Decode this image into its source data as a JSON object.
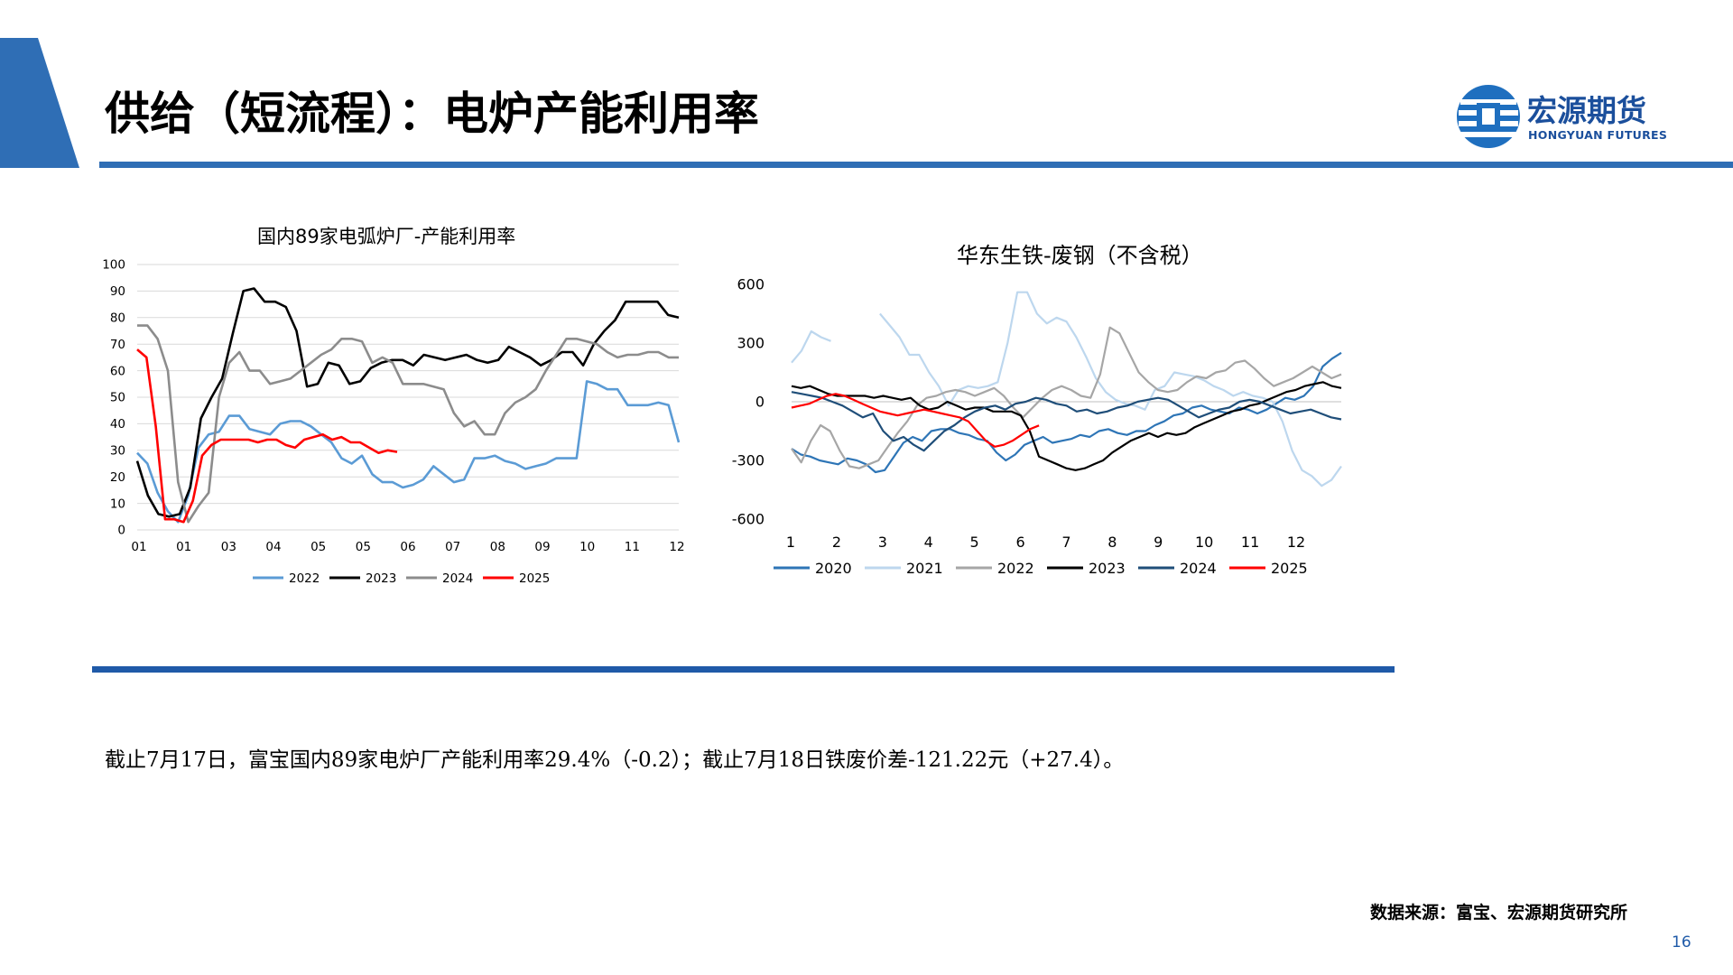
{
  "page": {
    "title": "供给（短流程）：电炉产能利用率",
    "logo_cn": "宏源期货",
    "logo_en": "HONGYUAN FUTURES",
    "summary": "截止7月17日，富宝国内89家电炉厂产能利用率29.4%（-0.2）；截止7月18日铁废价差-121.22元（+27.4）。",
    "source": "数据来源：富宝、宏源期货研究所",
    "page_number": "16",
    "colors": {
      "brand_blue": "#2f6eb5",
      "brand_dark": "#1f5aa8"
    }
  },
  "chart_data": [
    {
      "type": "line",
      "title": "国内89家电弧炉厂-产能利用率",
      "ylim": [
        0,
        100
      ],
      "yticks": [
        "0",
        "10",
        "20",
        "30",
        "40",
        "50",
        "60",
        "70",
        "80",
        "90",
        "100"
      ],
      "xticks": [
        "01",
        "01",
        "03",
        "04",
        "05",
        "05",
        "06",
        "07",
        "08",
        "09",
        "10",
        "11",
        "12"
      ],
      "legend_position": "bottom",
      "series": [
        {
          "name": "2022",
          "color": "#5b9bd5",
          "values": [
            29,
            25,
            14,
            7,
            3,
            13,
            31,
            36,
            37,
            43,
            43,
            38,
            37,
            36,
            40,
            41,
            41,
            39,
            36,
            33,
            27,
            25,
            28,
            21,
            18,
            18,
            16,
            17,
            19,
            24,
            21,
            18,
            19,
            27,
            27,
            28,
            26,
            25,
            23,
            24,
            25,
            27,
            27,
            27,
            56,
            55,
            53,
            53,
            47,
            47,
            47,
            48,
            47,
            33
          ]
        },
        {
          "name": "2023",
          "color": "#000000",
          "values": [
            26,
            13,
            6,
            5,
            6,
            16,
            42,
            50,
            57,
            74,
            90,
            91,
            86,
            86,
            84,
            75,
            54,
            55,
            63,
            62,
            55,
            56,
            61,
            63,
            64,
            64,
            62,
            66,
            65,
            64,
            65,
            66,
            64,
            63,
            64,
            69,
            67,
            65,
            62,
            64,
            67,
            67,
            62,
            70,
            75,
            79,
            86,
            86,
            86,
            86,
            81,
            80
          ]
        },
        {
          "name": "2024",
          "color": "#8c8c8c",
          "values": [
            77,
            77,
            72,
            60,
            18,
            3,
            9,
            14,
            50,
            63,
            67,
            60,
            60,
            55,
            56,
            57,
            60,
            63,
            66,
            68,
            72,
            72,
            71,
            63,
            65,
            63,
            55,
            55,
            55,
            54,
            53,
            44,
            39,
            41,
            36,
            36,
            44,
            48,
            50,
            53,
            60,
            66,
            72,
            72,
            71,
            70,
            67,
            65,
            66,
            66,
            67,
            67,
            65,
            65
          ]
        },
        {
          "name": "2025",
          "color": "#ff0000",
          "values": [
            68,
            65,
            39,
            4,
            4,
            3,
            11,
            28,
            32,
            34,
            34,
            34,
            34,
            33,
            34,
            34,
            32,
            31,
            34,
            35,
            36,
            34,
            35,
            33,
            33,
            31,
            29,
            30,
            29.4
          ]
        }
      ]
    },
    {
      "type": "line",
      "title": "华东生铁-废钢（不含税）",
      "ylim": [
        -600,
        600
      ],
      "yticks": [
        "-600",
        "-300",
        "0",
        "300",
        "600"
      ],
      "xticks": [
        "1",
        "2",
        "3",
        "4",
        "5",
        "6",
        "7",
        "8",
        "9",
        "10",
        "11",
        "12"
      ],
      "legend_position": "bottom",
      "series": [
        {
          "name": "2020",
          "color": "#2e75b6",
          "values": [
            -240,
            -270,
            -280,
            -300,
            -310,
            -320,
            -290,
            -300,
            -320,
            -360,
            -350,
            -280,
            -210,
            -180,
            -200,
            -150,
            -140,
            -140,
            -160,
            -170,
            -190,
            -200,
            -260,
            -300,
            -270,
            -220,
            -200,
            -180,
            -210,
            -200,
            -190,
            -170,
            -180,
            -150,
            -140,
            -160,
            -170,
            -150,
            -150,
            -120,
            -100,
            -70,
            -60,
            -30,
            -20,
            -40,
            -50,
            -60,
            -30,
            -40,
            -60,
            -40,
            -10,
            20,
            10,
            30,
            80,
            180,
            220,
            250
          ]
        },
        {
          "name": "2021",
          "color": "#bdd7ee",
          "values": [
            200,
            260,
            360,
            330,
            310,
            null,
            null,
            null,
            null,
            450,
            390,
            330,
            240,
            240,
            150,
            80,
            -20,
            60,
            80,
            70,
            80,
            100,
            300,
            560,
            560,
            450,
            400,
            430,
            410,
            330,
            230,
            120,
            50,
            10,
            -10,
            -20,
            -40,
            60,
            80,
            150,
            140,
            130,
            110,
            80,
            60,
            30,
            50,
            30,
            20,
            0,
            -100,
            -250,
            -350,
            -380,
            -430,
            -400,
            -330
          ]
        },
        {
          "name": "2022",
          "color": "#a6a6a6",
          "values": [
            -240,
            -310,
            -200,
            -120,
            -150,
            -250,
            -330,
            -340,
            -320,
            -300,
            -230,
            -160,
            -100,
            -20,
            20,
            30,
            50,
            60,
            50,
            30,
            50,
            70,
            30,
            -30,
            -80,
            -30,
            20,
            60,
            80,
            60,
            30,
            20,
            140,
            380,
            350,
            250,
            150,
            100,
            60,
            50,
            60,
            100,
            130,
            120,
            150,
            160,
            200,
            210,
            170,
            120,
            80,
            100,
            120,
            150,
            180,
            150,
            120,
            140
          ]
        },
        {
          "name": "2023",
          "color": "#000000",
          "values": [
            80,
            70,
            80,
            60,
            40,
            30,
            30,
            30,
            30,
            20,
            30,
            20,
            10,
            20,
            -20,
            -40,
            -30,
            0,
            -20,
            -40,
            -30,
            -30,
            -50,
            -50,
            -50,
            -70,
            -150,
            -280,
            -300,
            -320,
            -340,
            -350,
            -340,
            -320,
            -300,
            -260,
            -230,
            -200,
            -180,
            -160,
            -180,
            -160,
            -170,
            -160,
            -130,
            -110,
            -90,
            -70,
            -50,
            -40,
            -20,
            -10,
            10,
            30,
            50,
            60,
            80,
            90,
            100,
            80,
            70
          ]
        },
        {
          "name": "2024",
          "color": "#1f4e79",
          "values": [
            50,
            40,
            30,
            20,
            0,
            -20,
            -50,
            -80,
            -60,
            -150,
            -200,
            -180,
            -220,
            -250,
            -200,
            -150,
            -120,
            -80,
            -50,
            -30,
            -20,
            -40,
            -10,
            0,
            20,
            10,
            -10,
            -20,
            -50,
            -40,
            -60,
            -50,
            -30,
            -20,
            0,
            10,
            20,
            10,
            -20,
            -50,
            -80,
            -60,
            -40,
            -30,
            0,
            10,
            0,
            -20,
            -40,
            -60,
            -50,
            -40,
            -60,
            -80,
            -90
          ]
        },
        {
          "name": "2025",
          "color": "#ff0000",
          "values": [
            -30,
            -20,
            -10,
            10,
            30,
            40,
            30,
            10,
            -10,
            -30,
            -50,
            -60,
            -70,
            -60,
            -50,
            -40,
            -50,
            -60,
            -70,
            -80,
            -100,
            -150,
            -200,
            -230,
            -220,
            -200,
            -170,
            -140,
            -121.22
          ]
        }
      ]
    }
  ]
}
